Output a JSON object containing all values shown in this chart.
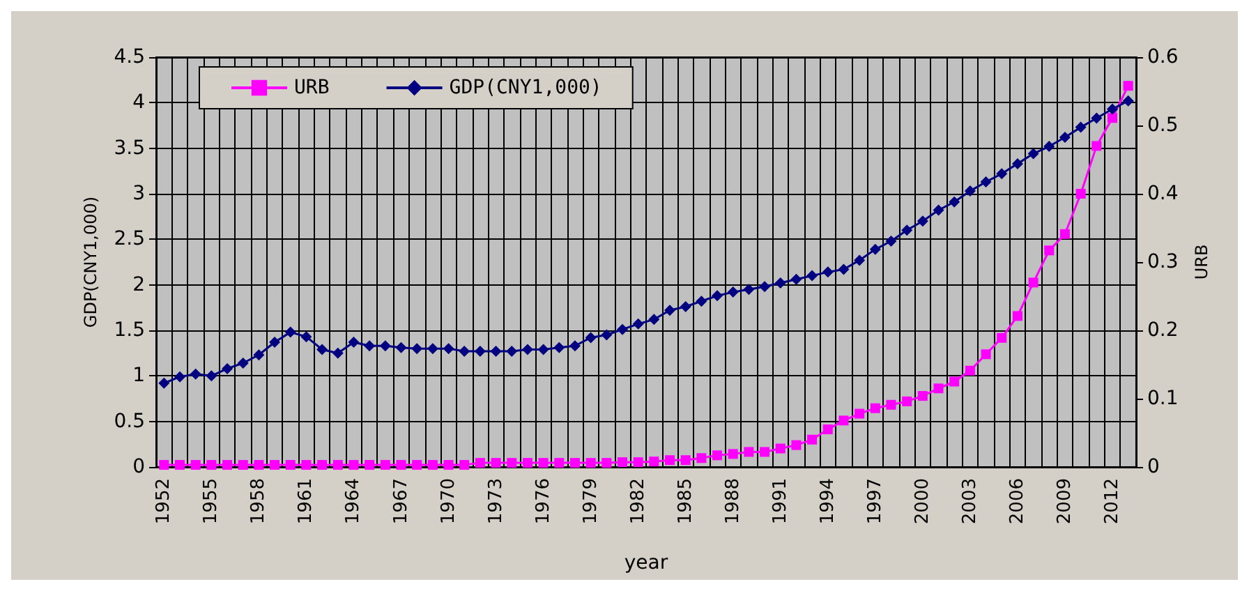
{
  "chart_data": {
    "type": "line",
    "xlabel": "year",
    "ylabel": "GDP(CNY1,000)",
    "y2label": "URB",
    "categories": [
      "1952",
      null,
      null,
      "1955",
      null,
      null,
      "1958",
      null,
      null,
      "1961",
      null,
      null,
      "1964",
      null,
      null,
      "1967",
      null,
      null,
      "1970",
      null,
      null,
      "1973",
      null,
      null,
      "1976",
      null,
      null,
      "1979",
      null,
      null,
      "1982",
      null,
      null,
      "1985",
      null,
      null,
      "1988",
      null,
      null,
      "1991",
      null,
      null,
      "1994",
      null,
      null,
      "1997",
      null,
      null,
      "2000",
      null,
      null,
      "2003",
      null,
      null,
      "2006",
      null,
      null,
      "2009",
      null,
      null,
      "2012",
      null
    ],
    "series": [
      {
        "name": "URB",
        "color": "#ff00ff",
        "axis": "y2",
        "marker": "square",
        "values": [
          0.003,
          0.003,
          0.003,
          0.003,
          0.003,
          0.003,
          0.003,
          0.003,
          0.003,
          0.003,
          0.003,
          0.003,
          0.003,
          0.003,
          0.003,
          0.003,
          0.003,
          0.003,
          0.003,
          0.003,
          0.006,
          0.006,
          0.006,
          0.006,
          0.006,
          0.006,
          0.006,
          0.006,
          0.006,
          0.007,
          0.007,
          0.008,
          0.01,
          0.01,
          0.013,
          0.017,
          0.019,
          0.022,
          0.022,
          0.027,
          0.032,
          0.04,
          0.055,
          0.068,
          0.078,
          0.086,
          0.091,
          0.096,
          0.104,
          0.115,
          0.125,
          0.141,
          0.165,
          0.189,
          0.221,
          0.27,
          0.317,
          0.341,
          0.4,
          0.47,
          0.511,
          0.558
        ]
      },
      {
        "name": "GDP(CNY1,000)",
        "color": "#000080",
        "marker": "diamond",
        "values": [
          0.92,
          0.99,
          1.02,
          1.0,
          1.08,
          1.14,
          1.23,
          1.37,
          1.48,
          1.43,
          1.29,
          1.25,
          1.37,
          1.33,
          1.33,
          1.31,
          1.3,
          1.3,
          1.3,
          1.27,
          1.27,
          1.27,
          1.27,
          1.29,
          1.29,
          1.31,
          1.33,
          1.42,
          1.45,
          1.51,
          1.57,
          1.62,
          1.72,
          1.76,
          1.82,
          1.88,
          1.92,
          1.95,
          1.98,
          2.02,
          2.06,
          2.1,
          2.14,
          2.17,
          2.27,
          2.39,
          2.48,
          2.6,
          2.7,
          2.82,
          2.91,
          3.03,
          3.13,
          3.22,
          3.33,
          3.44,
          3.52,
          3.62,
          3.73,
          3.83,
          3.93,
          4.02
        ]
      }
    ],
    "ylim": [
      0,
      4.5
    ],
    "yticks": [
      0,
      0.5,
      1,
      1.5,
      2,
      2.5,
      3,
      3.5,
      4,
      4.5
    ],
    "y2lim": [
      0,
      0.6
    ],
    "y2ticks": [
      0,
      0.1,
      0.2,
      0.3,
      0.4,
      0.5,
      0.6
    ],
    "grid": true,
    "legend": "top left",
    "line_style": "solid"
  }
}
